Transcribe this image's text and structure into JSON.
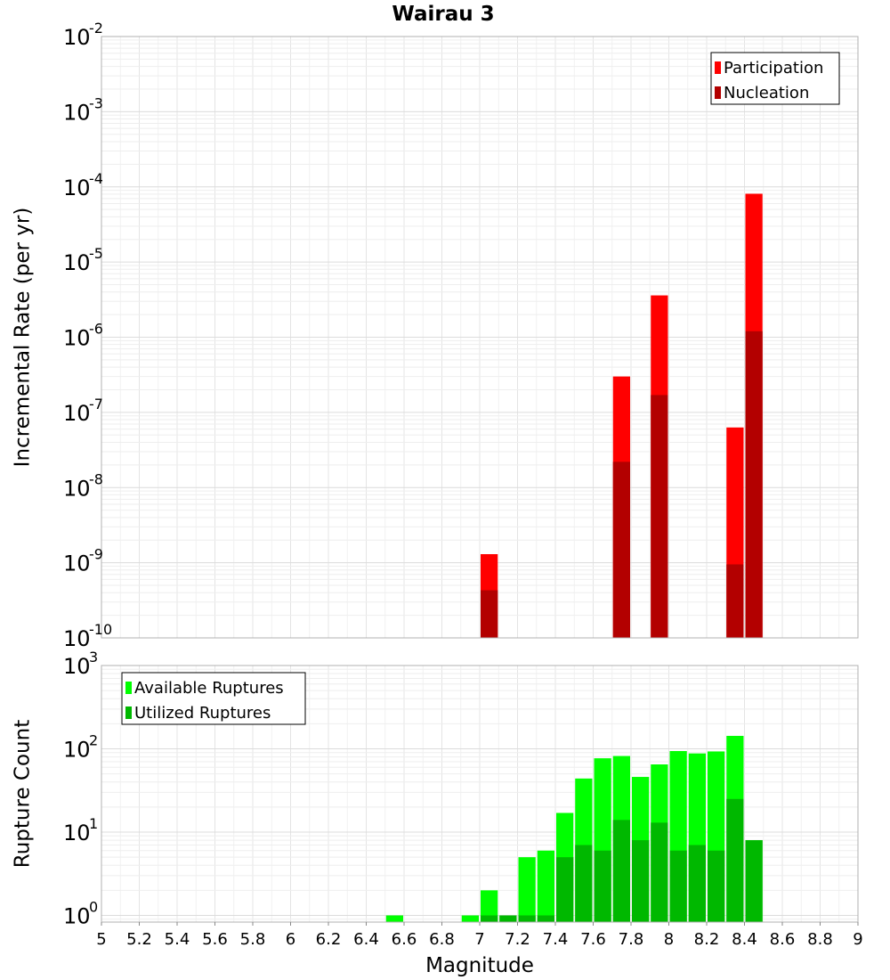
{
  "chart_data": [
    {
      "id": "top",
      "type": "bar",
      "title": "Wairau 3",
      "ylabel": "Incremental Rate (per yr)",
      "yscale": "log",
      "ylim_exponents": [
        -10,
        -2
      ],
      "ytick_base": "10",
      "ytick_exponents": [
        "-10",
        "-9",
        "-8",
        "-7",
        "-6",
        "-5",
        "-4",
        "-3",
        "-2"
      ],
      "xlim": [
        5,
        9
      ],
      "bin_width": 0.1,
      "grid": true,
      "legend_position": "top-right",
      "series": [
        {
          "name": "Participation",
          "color": "#ff0000",
          "points": [
            {
              "x": 7.05,
              "y": 1.3e-09
            },
            {
              "x": 7.75,
              "y": 3e-07
            },
            {
              "x": 7.95,
              "y": 3.6e-06
            },
            {
              "x": 8.35,
              "y": 6.3e-08
            },
            {
              "x": 8.45,
              "y": 8.1e-05
            }
          ]
        },
        {
          "name": "Nucleation",
          "color": "#b30000",
          "points": [
            {
              "x": 7.05,
              "y": 4.3e-10
            },
            {
              "x": 7.75,
              "y": 2.2e-08
            },
            {
              "x": 7.95,
              "y": 1.7e-07
            },
            {
              "x": 8.35,
              "y": 9.5e-10
            },
            {
              "x": 8.45,
              "y": 1.2e-06
            }
          ]
        }
      ]
    },
    {
      "id": "bottom",
      "type": "bar",
      "ylabel": "Rupture Count",
      "xlabel": "Magnitude",
      "yscale": "log",
      "ylim_exponents": [
        -0.08,
        3
      ],
      "ytick_base": "10",
      "ytick_exponents": [
        "0",
        "1",
        "2",
        "3"
      ],
      "xlim": [
        5,
        9
      ],
      "xticks": [
        "5",
        "5.2",
        "5.4",
        "5.6",
        "5.8",
        "6",
        "6.2",
        "6.4",
        "6.6",
        "6.8",
        "7",
        "7.2",
        "7.4",
        "7.6",
        "7.8",
        "8",
        "8.2",
        "8.4",
        "8.6",
        "8.8",
        "9"
      ],
      "bin_width": 0.1,
      "grid": true,
      "legend_position": "top-left",
      "series": [
        {
          "name": "Available Ruptures",
          "color": "#00ff00",
          "points": [
            {
              "x": 6.55,
              "y": 1
            },
            {
              "x": 6.95,
              "y": 1
            },
            {
              "x": 7.05,
              "y": 2
            },
            {
              "x": 7.15,
              "y": 1
            },
            {
              "x": 7.25,
              "y": 5
            },
            {
              "x": 7.35,
              "y": 6
            },
            {
              "x": 7.45,
              "y": 17
            },
            {
              "x": 7.55,
              "y": 44
            },
            {
              "x": 7.65,
              "y": 77
            },
            {
              "x": 7.75,
              "y": 82
            },
            {
              "x": 7.85,
              "y": 46
            },
            {
              "x": 7.95,
              "y": 65
            },
            {
              "x": 8.05,
              "y": 94
            },
            {
              "x": 8.15,
              "y": 88
            },
            {
              "x": 8.25,
              "y": 93
            },
            {
              "x": 8.35,
              "y": 143
            },
            {
              "x": 8.45,
              "y": 8
            }
          ]
        },
        {
          "name": "Utilized Ruptures",
          "color": "#00b800",
          "points": [
            {
              "x": 7.05,
              "y": 1
            },
            {
              "x": 7.15,
              "y": 1
            },
            {
              "x": 7.25,
              "y": 1
            },
            {
              "x": 7.35,
              "y": 1
            },
            {
              "x": 7.45,
              "y": 5
            },
            {
              "x": 7.55,
              "y": 7
            },
            {
              "x": 7.65,
              "y": 6
            },
            {
              "x": 7.75,
              "y": 14
            },
            {
              "x": 7.85,
              "y": 8
            },
            {
              "x": 7.95,
              "y": 13
            },
            {
              "x": 8.05,
              "y": 6
            },
            {
              "x": 8.15,
              "y": 7
            },
            {
              "x": 8.25,
              "y": 6
            },
            {
              "x": 8.35,
              "y": 25
            },
            {
              "x": 8.45,
              "y": 8
            }
          ]
        }
      ]
    }
  ]
}
